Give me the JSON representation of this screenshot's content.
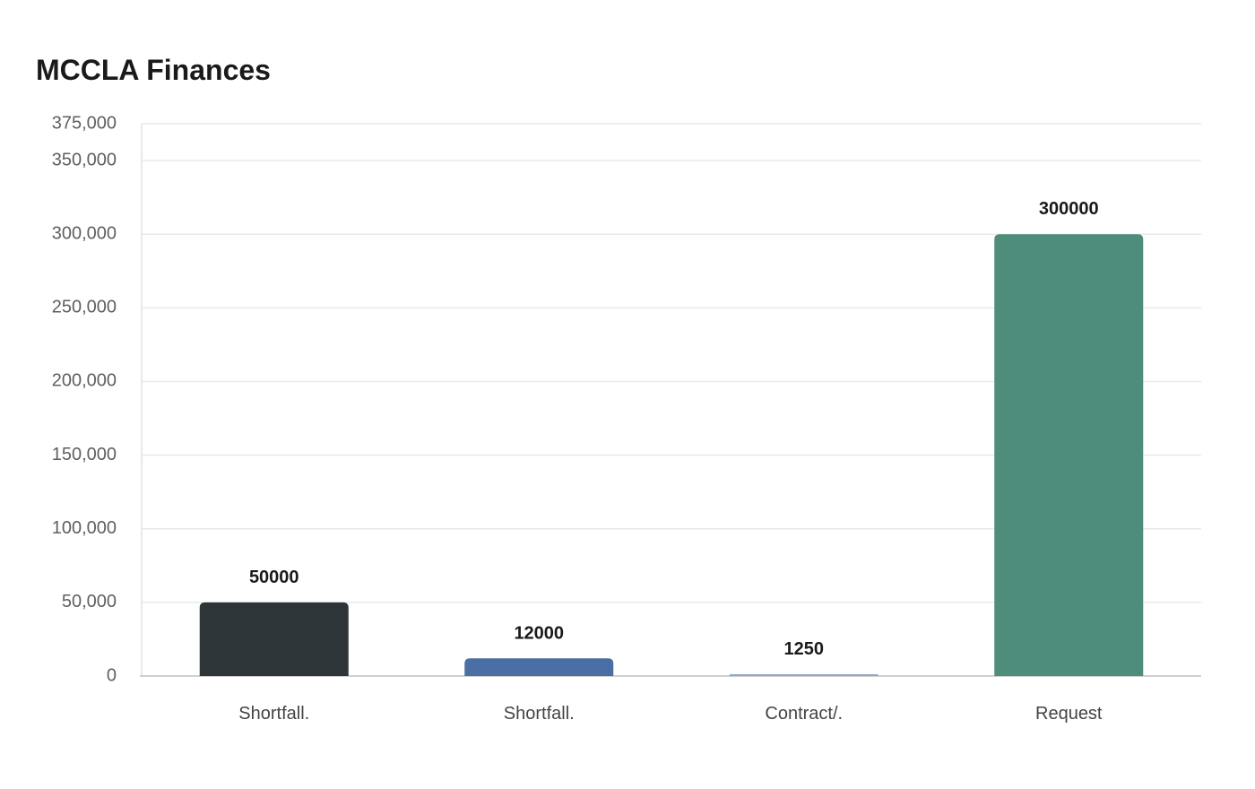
{
  "chart_data": {
    "type": "bar",
    "title": "MCCLA Finances",
    "xlabel": "",
    "ylabel": "",
    "categories": [
      "Shortfall.",
      "Shortfall.",
      "Contract/.",
      "Request"
    ],
    "values": [
      50000,
      12000,
      1250,
      300000
    ],
    "data_labels": [
      "50000",
      "12000",
      "1250",
      "300000"
    ],
    "ylim": [
      0,
      375000
    ],
    "yticks": [
      0,
      50000,
      100000,
      150000,
      200000,
      250000,
      300000,
      350000,
      375000
    ],
    "ytick_labels": [
      "0",
      "50,000",
      "100,000",
      "150,000",
      "200,000",
      "250,000",
      "300,000",
      "350,000",
      "375,000"
    ],
    "grid": true,
    "legend": "none",
    "colors": [
      "#2e3538",
      "#4a6fa5",
      "#8fa9c4",
      "#4e8d7b"
    ],
    "gridline_color": "#e9e9e9",
    "axis_color": "#d0d0d0"
  }
}
